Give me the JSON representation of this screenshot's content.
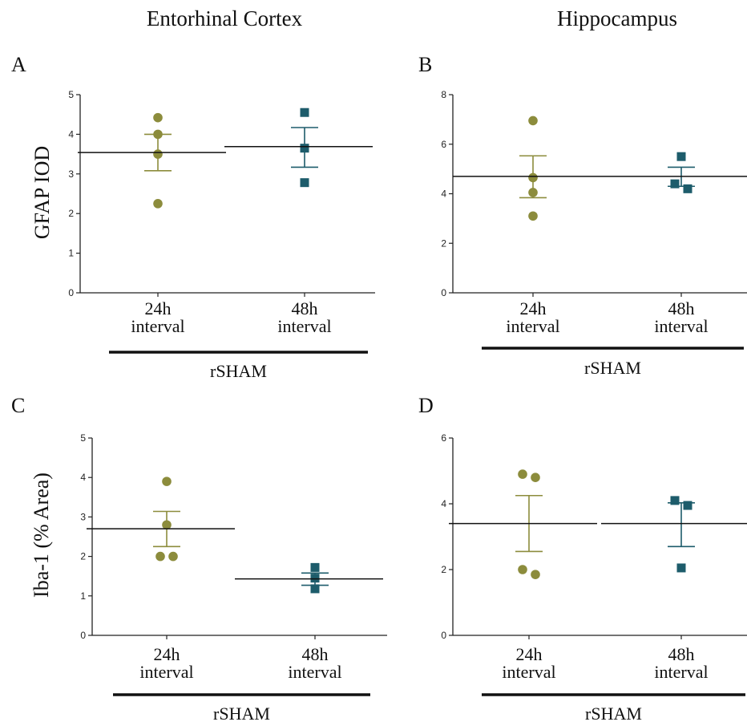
{
  "column_titles": [
    "Entorhinal Cortex",
    "Hippocampus"
  ],
  "row_ylabels": [
    "GFAP IOD",
    "Iba-1 (% Area)"
  ],
  "colors": {
    "24h": "#8c8c3c",
    "48h": "#1d5c6b"
  },
  "chart_data": [
    {
      "panel": "A",
      "type": "scatter",
      "categories": [
        [
          "24h",
          "interval"
        ],
        [
          "48h",
          "interval"
        ]
      ],
      "group_label": "rSHAM",
      "ylim": [
        0,
        5
      ],
      "yticks": [
        "0",
        "1",
        "2",
        "3",
        "4",
        "5"
      ],
      "series": [
        {
          "points": [
            4.42,
            4.0,
            3.5,
            2.25
          ],
          "mean": 3.54,
          "sem_low": 3.08,
          "sem_high": 4.0,
          "marker": "circle"
        },
        {
          "points": [
            4.55,
            3.65,
            2.78
          ],
          "mean": 3.69,
          "sem_low": 3.17,
          "sem_high": 4.17,
          "marker": "square"
        }
      ]
    },
    {
      "panel": "B",
      "type": "scatter",
      "categories": [
        [
          "24h",
          "interval"
        ],
        [
          "48h",
          "interval"
        ]
      ],
      "group_label": "rSHAM",
      "ylim": [
        0,
        8
      ],
      "yticks": [
        "0",
        "2",
        "4",
        "6",
        "8"
      ],
      "series": [
        {
          "points": [
            6.95,
            4.65,
            4.05,
            3.1
          ],
          "mean": 4.7,
          "sem_low": 3.84,
          "sem_high": 5.53,
          "marker": "circle"
        },
        {
          "points": [
            5.5,
            4.4,
            4.2
          ],
          "mean": 4.7,
          "sem_low": 4.3,
          "sem_high": 5.07,
          "marker": "square"
        }
      ]
    },
    {
      "panel": "C",
      "type": "scatter",
      "categories": [
        [
          "24h",
          "interval"
        ],
        [
          "48h",
          "interval"
        ]
      ],
      "group_label": "rSHAM",
      "ylim": [
        0,
        5
      ],
      "yticks": [
        "0",
        "1",
        "2",
        "3",
        "4",
        "5"
      ],
      "series": [
        {
          "points": [
            3.9,
            2.8,
            2.0,
            2.0
          ],
          "mean": 2.7,
          "sem_low": 2.25,
          "sem_high": 3.14,
          "marker": "circle"
        },
        {
          "points": [
            1.72,
            1.45,
            1.18
          ],
          "mean": 1.43,
          "sem_low": 1.27,
          "sem_high": 1.58,
          "marker": "square"
        }
      ]
    },
    {
      "panel": "D",
      "type": "scatter",
      "categories": [
        [
          "24h",
          "interval"
        ],
        [
          "48h",
          "interval"
        ]
      ],
      "group_label": "rSHAM",
      "ylim": [
        0,
        6
      ],
      "yticks": [
        "0",
        "2",
        "4",
        "6"
      ],
      "series": [
        {
          "points": [
            4.9,
            4.8,
            2.0,
            1.85
          ],
          "mean": 3.4,
          "sem_low": 2.55,
          "sem_high": 4.25,
          "marker": "circle"
        },
        {
          "points": [
            4.1,
            3.95,
            2.05
          ],
          "mean": 3.4,
          "sem_low": 2.7,
          "sem_high": 4.03,
          "marker": "square"
        }
      ]
    }
  ]
}
